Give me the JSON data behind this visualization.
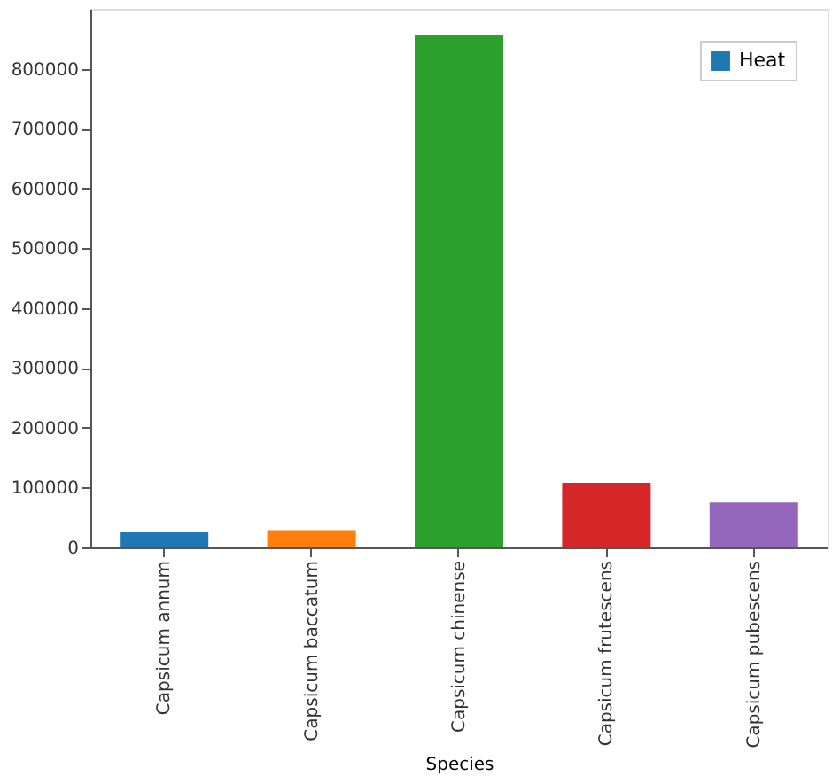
{
  "chart_data": {
    "type": "bar",
    "xlabel": "Species",
    "categories": [
      "Capsicum annum",
      "Capsicum baccatum",
      "Capsicum chinense",
      "Capsicum frutescens",
      "Capsicum pubescens"
    ],
    "series": [
      {
        "name": "Heat",
        "colors": [
          "#1f77b4",
          "#ff7f0e",
          "#2ca02c",
          "#d62728",
          "#9467bd"
        ],
        "color": "#1f77b4",
        "values": [
          26000,
          29000,
          857000,
          108000,
          75000
        ]
      }
    ],
    "ylim": [
      0,
      900000
    ],
    "yticks": [
      0,
      100000,
      200000,
      300000,
      400000,
      500000,
      600000,
      700000,
      800000
    ],
    "grid": false,
    "legend": "top right"
  }
}
